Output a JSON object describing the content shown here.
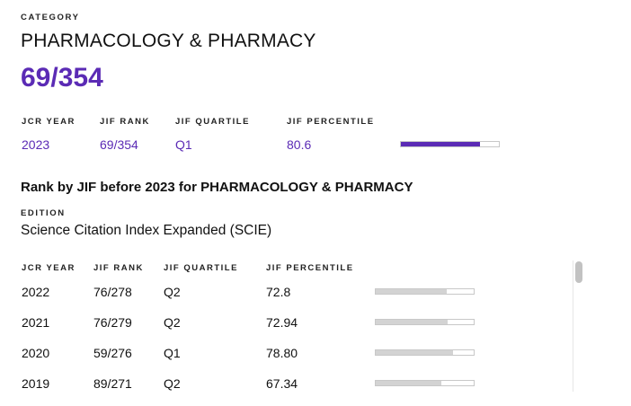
{
  "category": {
    "label": "CATEGORY",
    "name": "PHARMACOLOGY & PHARMACY",
    "rank": "69/354"
  },
  "summary": {
    "headers": {
      "year": "JCR YEAR",
      "rank": "JIF RANK",
      "quartile": "JIF QUARTILE",
      "percentile": "JIF PERCENTILE"
    },
    "values": {
      "year": "2023",
      "rank": "69/354",
      "quartile": "Q1",
      "percentile": "80.6"
    },
    "percentile_fraction": 0.806,
    "bar_color": "#5b2bb5"
  },
  "history": {
    "title": "Rank by JIF before 2023 for PHARMACOLOGY & PHARMACY",
    "edition_label": "EDITION",
    "edition_value": "Science Citation Index Expanded (SCIE)",
    "headers": {
      "year": "JCR YEAR",
      "rank": "JIF RANK",
      "quartile": "JIF QUARTILE",
      "percentile": "JIF PERCENTILE"
    },
    "bar_color": "#d3d3d3",
    "rows": [
      {
        "year": "2022",
        "rank": "76/278",
        "quartile": "Q2",
        "percentile": "72.8",
        "fraction": 0.728
      },
      {
        "year": "2021",
        "rank": "76/279",
        "quartile": "Q2",
        "percentile": "72.94",
        "fraction": 0.7294
      },
      {
        "year": "2020",
        "rank": "59/276",
        "quartile": "Q1",
        "percentile": "78.80",
        "fraction": 0.788
      },
      {
        "year": "2019",
        "rank": "89/271",
        "quartile": "Q2",
        "percentile": "67.34",
        "fraction": 0.6734
      }
    ]
  }
}
